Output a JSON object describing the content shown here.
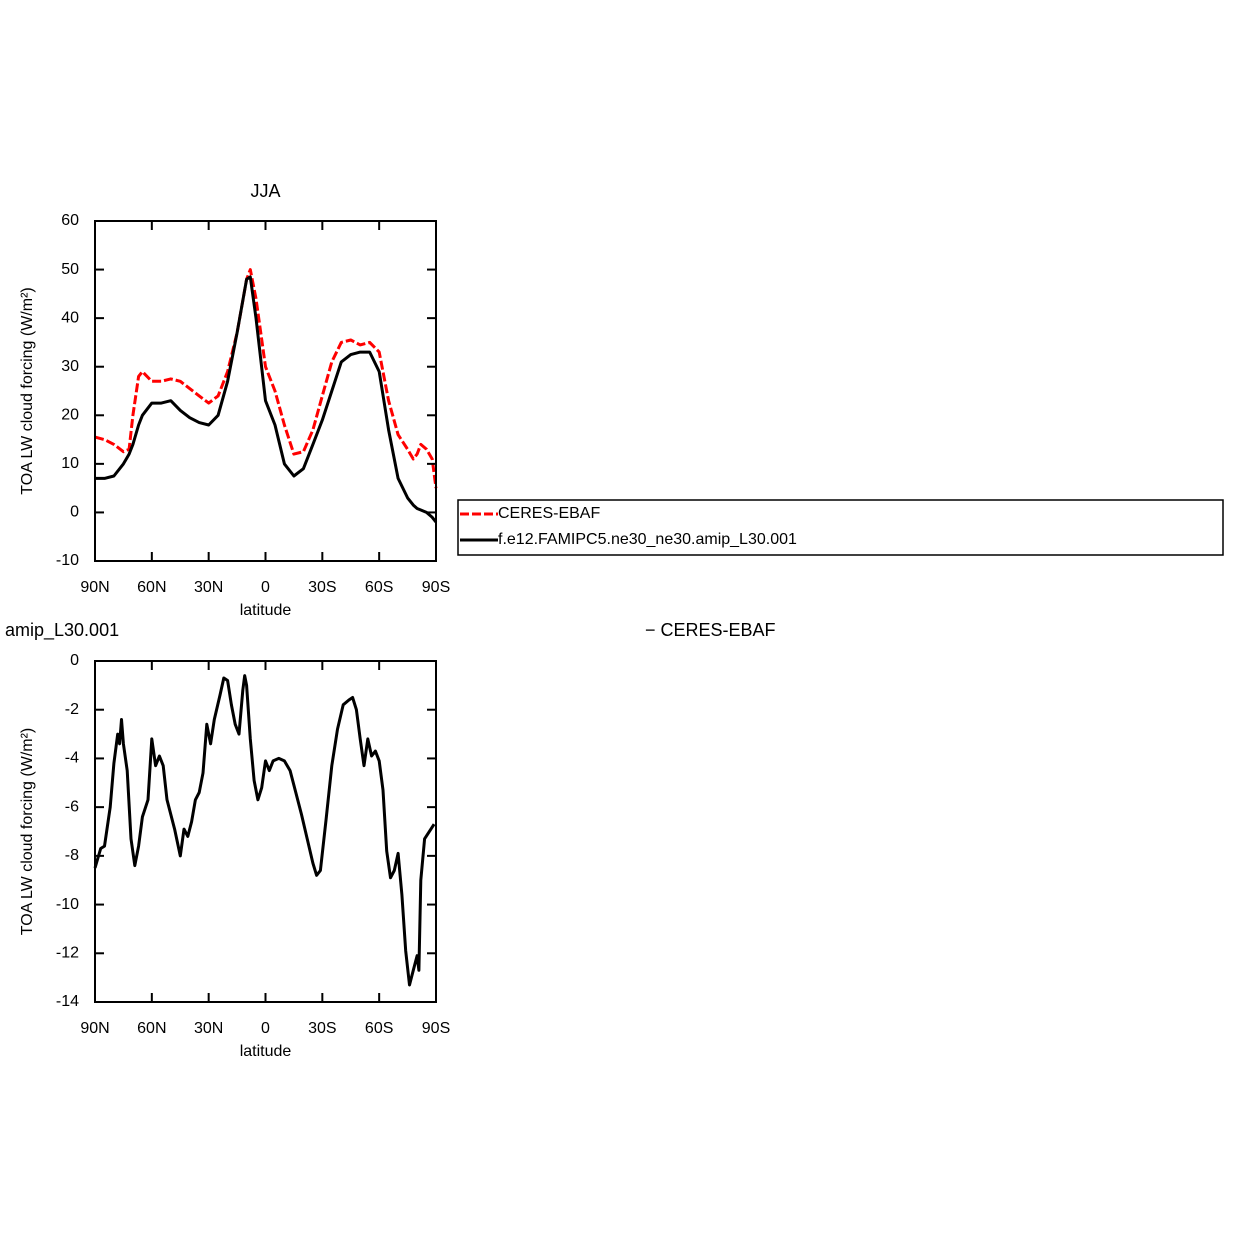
{
  "chart_data": [
    {
      "type": "line",
      "title": "JJA",
      "xlabel": "latitude",
      "ylabel": "TOA LW cloud forcing (W/m²)",
      "x": [
        90,
        85,
        80,
        75,
        72,
        70,
        67,
        65,
        60,
        55,
        50,
        45,
        40,
        35,
        30,
        25,
        20,
        15,
        10,
        8,
        5,
        0,
        -5,
        -10,
        -15,
        -20,
        -25,
        -30,
        -35,
        -40,
        -45,
        -50,
        -55,
        -60,
        -65,
        -70,
        -75,
        -78,
        -80,
        -82,
        -85,
        -88,
        -90
      ],
      "xlim": [
        90,
        -90
      ],
      "xticks": [
        {
          "value": 90,
          "label": "90N"
        },
        {
          "value": 60,
          "label": "60N"
        },
        {
          "value": 30,
          "label": "30N"
        },
        0,
        {
          "value": -30,
          "label": "30S"
        },
        {
          "value": -60,
          "label": "60S"
        },
        {
          "value": -90,
          "label": "90S"
        }
      ],
      "ylim": [
        -10,
        60
      ],
      "yticks": [
        -10,
        0,
        10,
        20,
        30,
        40,
        50,
        60
      ],
      "legend": "right",
      "series": [
        {
          "name": "CERES-EBAF",
          "color": "#ff0000",
          "dash": true,
          "values": [
            15.5,
            15,
            14,
            12.5,
            13,
            20,
            28,
            29,
            27,
            27,
            27.5,
            27,
            25.5,
            24,
            22.5,
            24,
            29,
            37,
            48,
            50,
            44,
            30,
            25,
            18,
            12,
            12.5,
            17,
            24,
            31,
            35,
            35.5,
            34.5,
            35,
            33,
            23,
            16,
            13,
            11,
            12,
            14,
            13,
            11,
            5
          ]
        },
        {
          "name": "f.e12.FAMIPC5.ne30_ne30.amip_L30.001",
          "color": "#000000",
          "dash": false,
          "values": [
            7,
            7,
            7.5,
            10,
            12,
            14,
            18,
            20,
            22.5,
            22.5,
            23,
            21,
            19.5,
            18.5,
            18,
            20,
            27,
            37,
            48,
            48.5,
            40,
            23,
            18,
            10,
            7.5,
            9,
            14,
            19,
            25,
            31,
            32.5,
            33,
            33,
            29,
            17,
            7,
            3,
            1.5,
            0.8,
            0.5,
            0,
            -1,
            -2
          ]
        }
      ]
    },
    {
      "type": "line",
      "left_title": "amip_L30.001",
      "right_title": "− CERES-EBAF",
      "xlabel": "latitude",
      "ylabel": "TOA LW cloud forcing (W/m²)",
      "x": [
        90,
        87,
        85,
        82,
        80,
        78,
        77,
        76,
        75,
        73,
        71,
        69,
        67,
        65,
        62,
        60,
        58,
        56,
        54,
        52,
        48,
        45,
        43,
        41,
        39,
        37,
        35,
        33,
        31,
        29,
        27,
        24,
        22,
        20,
        18,
        16,
        14,
        12,
        11,
        10,
        8,
        6,
        4,
        2,
        0,
        -2,
        -4,
        -7,
        -10,
        -13,
        -16,
        -19,
        -22,
        -25,
        -27,
        -29,
        -32,
        -35,
        -38,
        -41,
        -44,
        -46,
        -48,
        -50,
        -52,
        -54,
        -56,
        -58,
        -60,
        -62,
        -64,
        -66,
        -68,
        -70,
        -72,
        -74,
        -76,
        -78,
        -80,
        -81,
        -82,
        -84,
        -89
      ],
      "xlim": [
        90,
        -90
      ],
      "xticks": [
        {
          "value": 90,
          "label": "90N"
        },
        {
          "value": 60,
          "label": "60N"
        },
        {
          "value": 30,
          "label": "30N"
        },
        0,
        {
          "value": -30,
          "label": "30S"
        },
        {
          "value": -60,
          "label": "60S"
        },
        {
          "value": -90,
          "label": "90S"
        }
      ],
      "ylim": [
        -14,
        0
      ],
      "yticks": [
        -14,
        -12,
        -10,
        -8,
        -6,
        -4,
        -2,
        0
      ],
      "series": [
        {
          "color": "#000000",
          "dash": false,
          "values": [
            -8.5,
            -7.7,
            -7.6,
            -6,
            -4.2,
            -3,
            -3.4,
            -2.4,
            -3.4,
            -4.5,
            -7.3,
            -8.4,
            -7.6,
            -6.4,
            -5.7,
            -3.2,
            -4.3,
            -3.9,
            -4.3,
            -5.7,
            -6.9,
            -8,
            -6.9,
            -7.2,
            -6.6,
            -5.7,
            -5.4,
            -4.6,
            -2.6,
            -3.4,
            -2.4,
            -1.4,
            -0.7,
            -0.8,
            -1.8,
            -2.6,
            -3,
            -1.2,
            -0.6,
            -1,
            -3.2,
            -4.9,
            -5.7,
            -5.2,
            -4.1,
            -4.5,
            -4.1,
            -4,
            -4.1,
            -4.5,
            -5.4,
            -6.3,
            -7.3,
            -8.3,
            -8.8,
            -8.6,
            -6.5,
            -4.3,
            -2.8,
            -1.8,
            -1.6,
            -1.5,
            -2,
            -3.2,
            -4.3,
            -3.2,
            -3.9,
            -3.7,
            -4.1,
            -5.3,
            -7.8,
            -8.9,
            -8.6,
            -7.9,
            -9.6,
            -11.9,
            -13.3,
            -12.7,
            -12.1,
            -12.7,
            -9,
            -7.3,
            -6.7
          ]
        }
      ]
    }
  ]
}
